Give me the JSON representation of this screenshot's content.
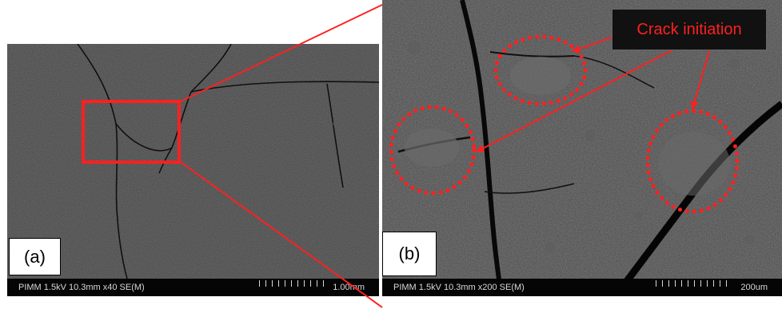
{
  "panel_a": {
    "label": "(a)",
    "info_bar": "PIMM 1.5kV 10.3mm x40 SE(M)",
    "scale_bar_label": "1.00mm"
  },
  "panel_b": {
    "label": "(b)",
    "info_bar": "PIMM 1.5kV 10.3mm x200 SE(M)",
    "scale_bar_label": "200um",
    "callout_text": "Crack initiation"
  },
  "colors": {
    "annotation": "#ff2020",
    "sem_background": "#3f3f3f",
    "info_bar": "#050505"
  }
}
